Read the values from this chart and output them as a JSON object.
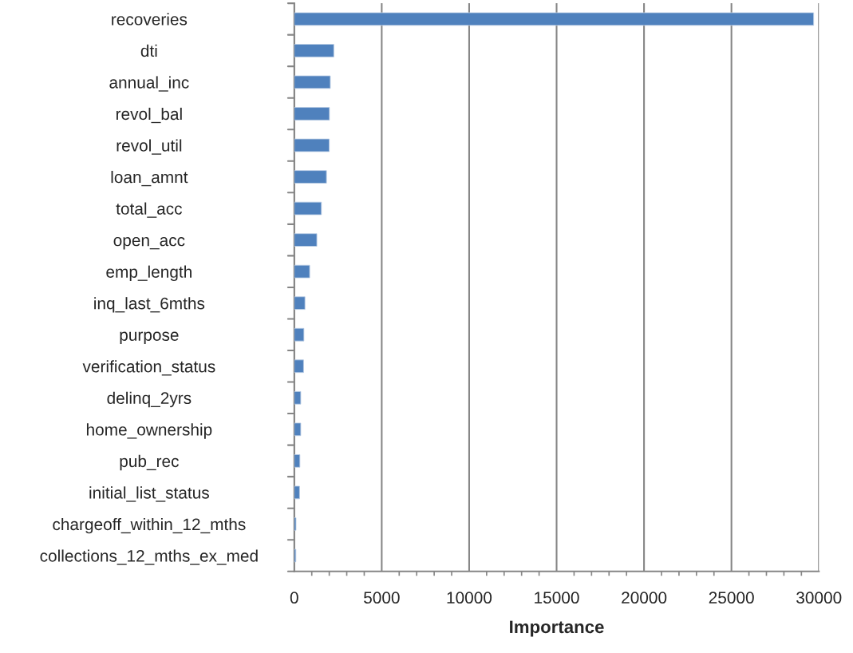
{
  "chart_data": {
    "type": "bar",
    "orientation": "horizontal",
    "xlabel": "Importance",
    "categories": [
      "recoveries",
      "dti",
      "annual_inc",
      "revol_bal",
      "revol_util",
      "loan_amnt",
      "total_acc",
      "open_acc",
      "emp_length",
      "inq_last_6mths",
      "purpose",
      "verification_status",
      "delinq_2yrs",
      "home_ownership",
      "pub_rec",
      "initial_list_status",
      "chargeoff_within_12_mths",
      "collections_12_mths_ex_med"
    ],
    "values": [
      29700,
      2260,
      2060,
      2010,
      2000,
      1840,
      1550,
      1290,
      880,
      610,
      550,
      530,
      370,
      370,
      320,
      300,
      100,
      90
    ],
    "color": "#4f81bd",
    "xlim": [
      0,
      30000
    ],
    "xticks": [
      0,
      5000,
      10000,
      15000,
      20000,
      25000,
      30000
    ],
    "grid": "x",
    "legend": false
  }
}
